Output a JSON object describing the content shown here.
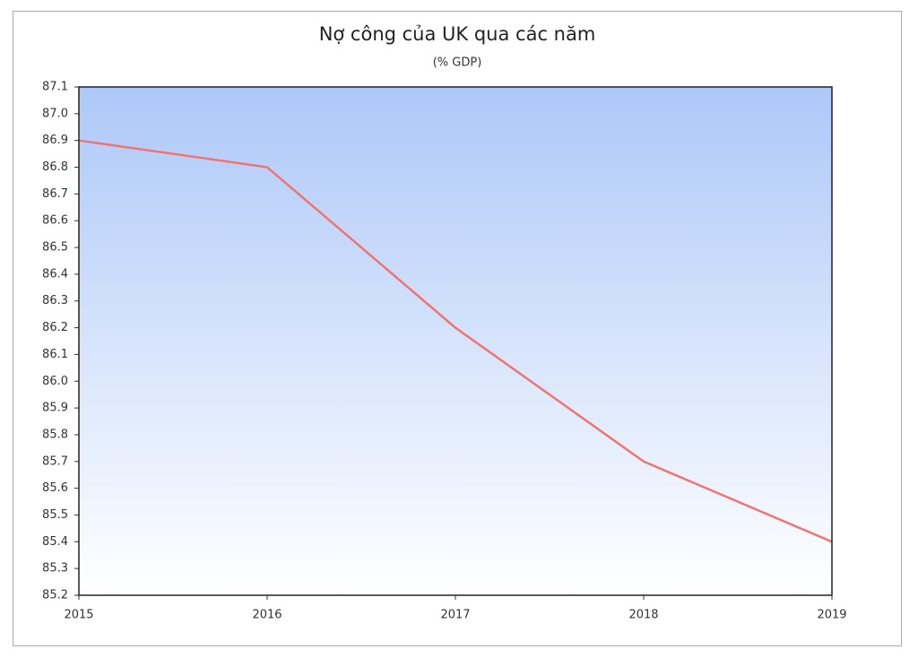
{
  "chart_data": {
    "type": "line",
    "title": "Nợ công của UK qua các năm",
    "subtitle": "(% GDP)",
    "x": [
      2015,
      2016,
      2017,
      2018,
      2019
    ],
    "series": [
      {
        "name": "Nợ công",
        "color": "#f07470",
        "values": [
          86.9,
          86.8,
          86.2,
          85.7,
          85.4
        ]
      }
    ],
    "xlim": [
      2015,
      2019
    ],
    "xticks": [
      2015,
      2016,
      2017,
      2018,
      2019
    ],
    "ylim": [
      85.2,
      87.1
    ],
    "yticks": [
      85.2,
      85.3,
      85.4,
      85.5,
      85.6,
      85.7,
      85.8,
      85.9,
      {
        "value": 86,
        "label": "86.0"
      },
      86.1,
      86.2,
      86.3,
      86.4,
      86.5,
      86.6,
      86.7,
      86.8,
      86.9,
      {
        "value": 87,
        "label": "87.0"
      },
      87.1
    ],
    "grid": false,
    "background_gradient": [
      "#adc8f8",
      "#ffffff"
    ]
  }
}
